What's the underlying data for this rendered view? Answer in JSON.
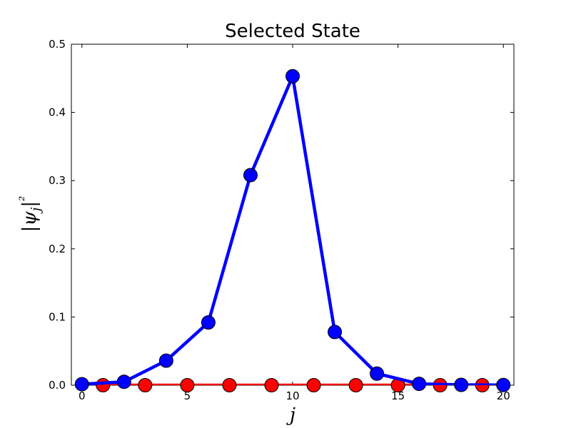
{
  "chart_data": {
    "type": "line",
    "title": "Selected State",
    "xlabel": "j",
    "ylabel": "|ψ_j|²",
    "xlim": [
      -0.5,
      20.5
    ],
    "ylim": [
      0.0,
      0.5
    ],
    "xticks": [
      0,
      5,
      10,
      15,
      20
    ],
    "xtick_labels": [
      "0",
      "5",
      "10",
      "15",
      "20"
    ],
    "yticks": [
      0.0,
      0.1,
      0.2,
      0.3,
      0.4,
      0.5
    ],
    "ytick_labels": [
      "0.0",
      "0.1",
      "0.2",
      "0.3",
      "0.4",
      "0.5"
    ],
    "grid": false,
    "series": [
      {
        "color": "#0000ff",
        "marker": "circle",
        "x": [
          0,
          2,
          4,
          6,
          8,
          10,
          12,
          14,
          16,
          18,
          20
        ],
        "y": [
          0.0015,
          0.005,
          0.036,
          0.092,
          0.308,
          0.453,
          0.078,
          0.017,
          0.002,
          0.0005,
          0.0003
        ]
      },
      {
        "color": "#ff0000",
        "marker": "circle",
        "x": [
          1,
          3,
          5,
          7,
          9,
          11,
          13,
          15,
          17,
          19
        ],
        "y": [
          0.0,
          0.0,
          0.0,
          0.0,
          0.0,
          0.0,
          0.0,
          0.0,
          0.0,
          0.0
        ]
      }
    ]
  }
}
